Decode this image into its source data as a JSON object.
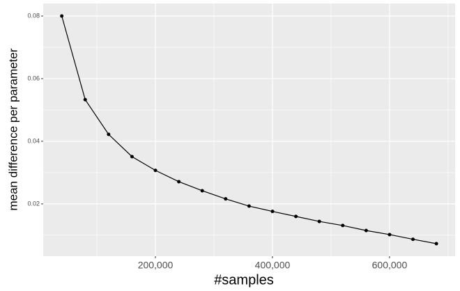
{
  "chart_data": {
    "type": "line",
    "x_label": "#samples",
    "y_label": "mean difference per parameter",
    "x": [
      40000,
      80000,
      120000,
      160000,
      200000,
      240000,
      280000,
      320000,
      360000,
      400000,
      440000,
      480000,
      520000,
      560000,
      600000,
      640000,
      680000
    ],
    "series": [
      {
        "color": "#000000",
        "values": [
          0.08,
          0.0533,
          0.0422,
          0.0351,
          0.0307,
          0.0271,
          0.0242,
          0.0216,
          0.0193,
          0.0176,
          0.016,
          0.0144,
          0.0131,
          0.0115,
          0.0102,
          0.0087,
          0.0073
        ]
      }
    ],
    "xlim": [
      8300,
      712000
    ],
    "ylim": [
      0.0033,
      0.084
    ],
    "xticks": [
      {
        "value": 200000,
        "label": "200,000"
      },
      {
        "value": 400000,
        "label": "400,000"
      },
      {
        "value": 600000,
        "label": "600,000"
      }
    ],
    "yticks": [
      0.02,
      0.04,
      0.06,
      0.08
    ],
    "grid": true
  }
}
